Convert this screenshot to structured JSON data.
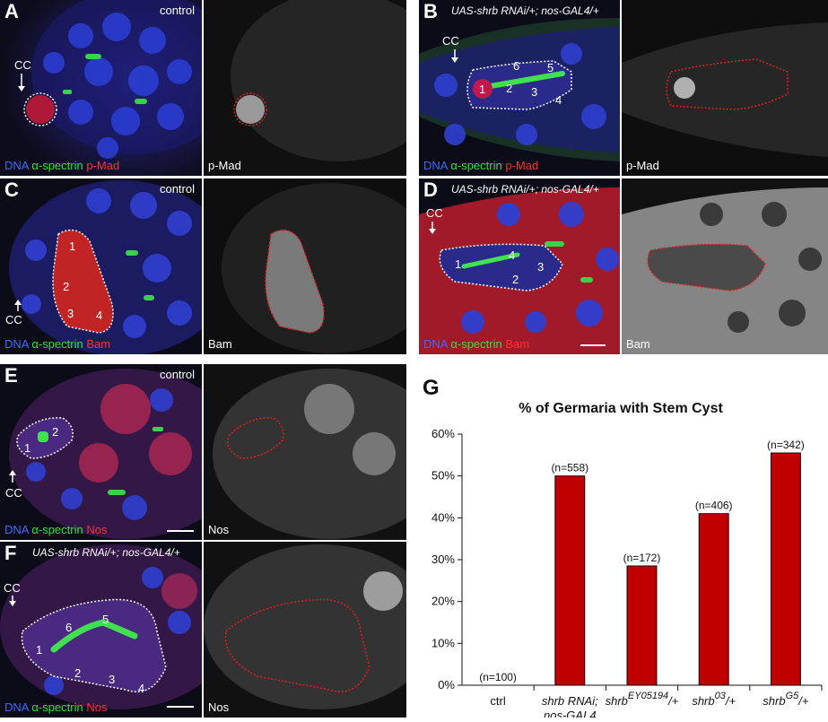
{
  "panels": {
    "A": {
      "letter": "A",
      "condition": "control",
      "labels": [
        "DNA",
        "α-spectrin",
        "p-Mad"
      ],
      "gray_label": "p-Mad",
      "cc": "CC",
      "cells": []
    },
    "B": {
      "letter": "B",
      "condition": "UAS-shrb RNAi/+; nos-GAL4/+",
      "labels": [
        "DNA",
        "α-spectrin",
        "p-Mad"
      ],
      "gray_label": "p-Mad",
      "cc": "CC",
      "cells": [
        "1",
        "2",
        "3",
        "4",
        "5",
        "6"
      ]
    },
    "C": {
      "letter": "C",
      "condition": "control",
      "labels": [
        "DNA",
        "α-spectrin",
        "Bam"
      ],
      "gray_label": "Bam",
      "cc": "CC",
      "cells": [
        "1",
        "2",
        "3",
        "4"
      ]
    },
    "D": {
      "letter": "D",
      "condition": "UAS-shrb RNAi/+; nos-GAL4/+",
      "labels": [
        "DNA",
        "α-spectrin",
        "Bam"
      ],
      "gray_label": "Bam",
      "cc": "CC",
      "cells": [
        "1",
        "2",
        "3",
        "4"
      ]
    },
    "E": {
      "letter": "E",
      "condition": "control",
      "labels": [
        "DNA",
        "α-spectrin",
        "Nos"
      ],
      "gray_label": "Nos",
      "cc": "CC",
      "cells": [
        "1",
        "2"
      ]
    },
    "F": {
      "letter": "F",
      "condition": "UAS-shrb RNAi/+; nos-GAL4/+",
      "labels": [
        "DNA",
        "α-spectrin",
        "Nos"
      ],
      "gray_label": "Nos",
      "cc": "CC",
      "cells": [
        "1",
        "2",
        "3",
        "4",
        "5",
        "6"
      ]
    }
  },
  "chart_data": {
    "type": "bar",
    "panel_letter": "G",
    "title": "% of Germaria with Stem Cyst",
    "categories": [
      "ctrl",
      "shrb RNAi; nos-GAL4",
      "shrbEY05194/+",
      "shrb03/+",
      "shrbG5/+"
    ],
    "category_parts": [
      {
        "main": "ctrl",
        "sup": "",
        "suffix": "",
        "line2": ""
      },
      {
        "main": "shrb RNAi;",
        "sup": "",
        "suffix": "",
        "line2": "nos-GAL4"
      },
      {
        "main": "shrb",
        "sup": "EY05194",
        "suffix": "/+",
        "line2": ""
      },
      {
        "main": "shrb",
        "sup": "03",
        "suffix": "/+",
        "line2": ""
      },
      {
        "main": "shrb",
        "sup": "G5",
        "suffix": "/+",
        "line2": ""
      }
    ],
    "values": [
      0,
      50,
      28.5,
      41,
      55.5
    ],
    "n_labels": [
      "(n=100)",
      "(n=558)",
      "(n=172)",
      "(n=406)",
      "(n=342)"
    ],
    "ylim": [
      0,
      60
    ],
    "yticks": [
      "0%",
      "10%",
      "20%",
      "30%",
      "40%",
      "50%",
      "60%"
    ],
    "bar_color": "#c00000",
    "grid": false
  }
}
